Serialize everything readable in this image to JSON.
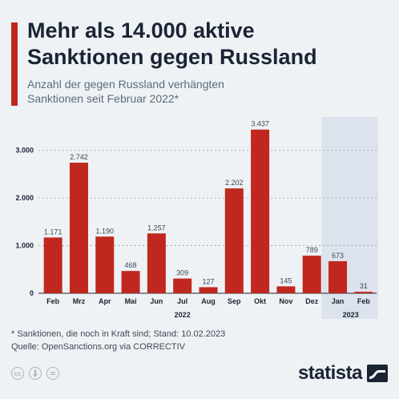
{
  "header": {
    "title_line1": "Mehr als 14.000 aktive",
    "title_line2": "Sanktionen gegen Russland",
    "subtitle_line1": "Anzahl der gegen Russland verhängten",
    "subtitle_line2": "Sanktionen seit Februar 2022*"
  },
  "chart_data": {
    "type": "bar",
    "categories": [
      "Feb",
      "Mrz",
      "Apr",
      "Mai",
      "Jun",
      "Jul",
      "Aug",
      "Sep",
      "Okt",
      "Nov",
      "Dez",
      "Jan",
      "Feb"
    ],
    "values": [
      1171,
      2742,
      1190,
      468,
      1257,
      309,
      127,
      2202,
      3437,
      145,
      789,
      673,
      31
    ],
    "value_labels": [
      "1.171",
      "2.742",
      "1.190",
      "468",
      "1.257",
      "309",
      "127",
      "2.202",
      "3.437",
      "145",
      "789",
      "673",
      "31"
    ],
    "year_groups": [
      {
        "label": "2022",
        "from": 0,
        "to": 10
      },
      {
        "label": "2023",
        "from": 11,
        "to": 12
      }
    ],
    "yticks": [
      0,
      1000,
      2000,
      3000
    ],
    "ytick_labels": [
      "0",
      "1.000",
      "2.000",
      "3.000"
    ],
    "ylim": [
      0,
      3500
    ],
    "highlight_group": "2023",
    "grid": true,
    "bar_color": "#c0281f",
    "highlight_color": "#dde3ec"
  },
  "footer": {
    "note": "* Sanktionen, die noch in Kraft sind; Stand: 10.02.2023",
    "source": "Quelle: OpenSanctions.org via CORRECTIV",
    "brand": "statista",
    "license_icons": [
      "cc-icon",
      "person-icon",
      "equals-icon"
    ]
  }
}
